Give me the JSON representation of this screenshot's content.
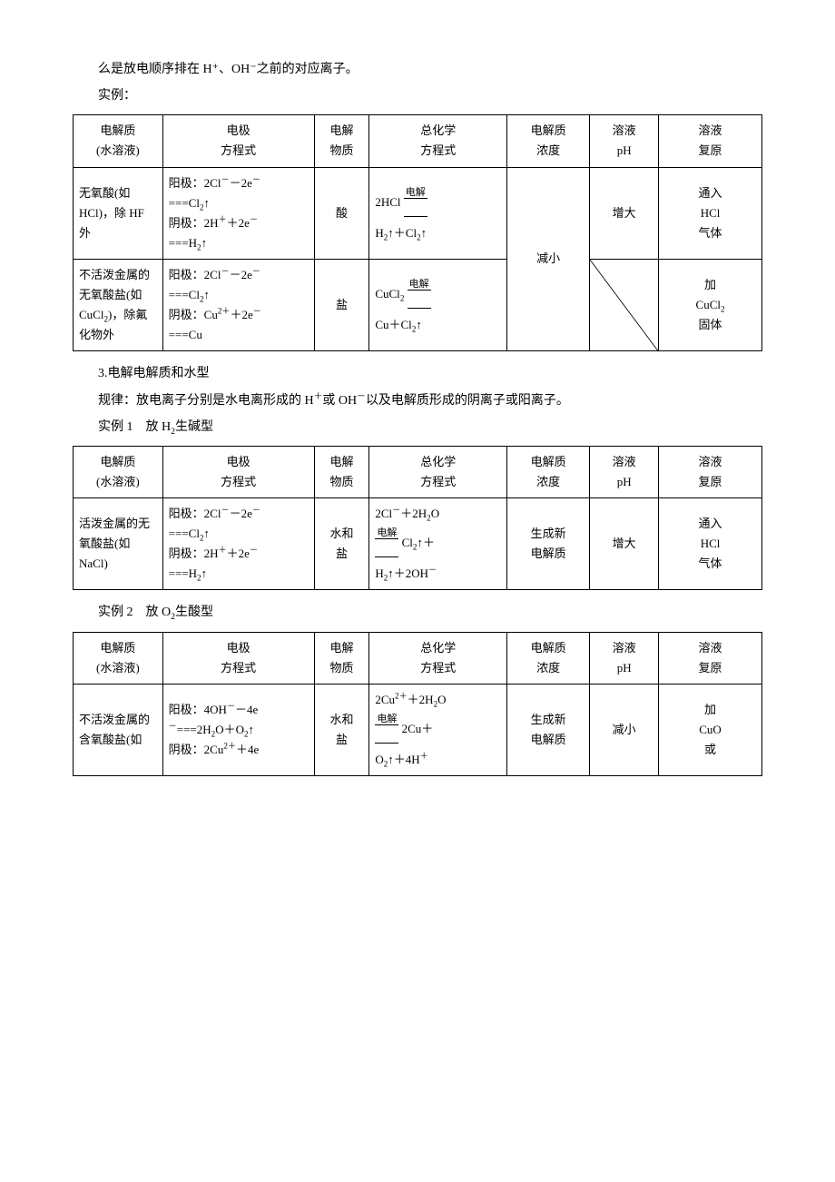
{
  "intro_line": "么是放电顺序排在 H⁺、OH⁻之前的对应离子。",
  "examples_label": "实例：",
  "headers": {
    "electrolyte": "电解质\n(水溶液)",
    "electrode_eq": "电极\n方程式",
    "substance": "电解\n物质",
    "overall_eq": "总化学\n方程式",
    "concentration": "电解质\n浓度",
    "ph": "溶液\npH",
    "restore": "溶液\n复原"
  },
  "table1": {
    "row1": {
      "electrolyte": "无氧酸(如 HCl)，除 HF 外",
      "anode": "阳极：2Cl⁻－2e⁻ ===Cl₂↑",
      "cathode": "阴极：2H⁺＋2e⁻ ===H₂↑",
      "substance": "酸",
      "overall_pre": "2HCl",
      "overall_label": "电解",
      "overall_post": "H₂↑＋Cl₂↑",
      "ph": "增大",
      "restore": "通入 HCl 气体"
    },
    "concentration_merged": "减小",
    "row2": {
      "electrolyte": "不活泼金属的无氧酸盐(如 CuCl₂)，除氟化物外",
      "anode": "阳极：2Cl⁻－2e⁻ ===Cl₂↑",
      "cathode": "阴极：Cu²⁺＋2e⁻ ===Cu",
      "substance": "盐",
      "overall_pre": "CuCl₂",
      "overall_label": "电解",
      "overall_post": "Cu＋Cl₂↑",
      "restore": "加 CuCl₂ 固体"
    }
  },
  "section3_title": "3.电解电解质和水型",
  "section3_rule": "规律：放电离子分别是水电离形成的 H⁺或 OH⁻以及电解质形成的阴离子或阳离子。",
  "example1_label": "实例 1　放 H₂生碱型",
  "table2": {
    "row1": {
      "electrolyte": "活泼金属的无氧酸盐(如 NaCl)",
      "anode": "阳极：2Cl⁻－2e⁻ ===Cl₂↑",
      "cathode": "阴极：2H⁺＋2e⁻ ===H₂↑",
      "substance": "水和盐",
      "overall_pre": "2Cl⁻＋2H₂O",
      "overall_label": "电解",
      "overall_post": "Cl₂↑＋H₂↑＋2OH⁻",
      "concentration": "生成新电解质",
      "ph": "增大",
      "restore": "通入 HCl 气体"
    }
  },
  "example2_label": "实例 2　放 O₂生酸型",
  "table3": {
    "row1": {
      "electrolyte": "不活泼金属的含氧酸盐(如",
      "anode": "阳极：4OH⁻－4e⁻===2H₂O＋O₂↑",
      "cathode": "阴极：2Cu²⁺＋4e",
      "substance": "水和盐",
      "overall_pre": "2Cu²⁺＋2H₂O",
      "overall_label": "电解",
      "overall_post": "2Cu＋O₂↑＋4H⁺",
      "concentration": "生成新电解质",
      "ph": "减小",
      "restore": "加 CuO 或"
    }
  }
}
